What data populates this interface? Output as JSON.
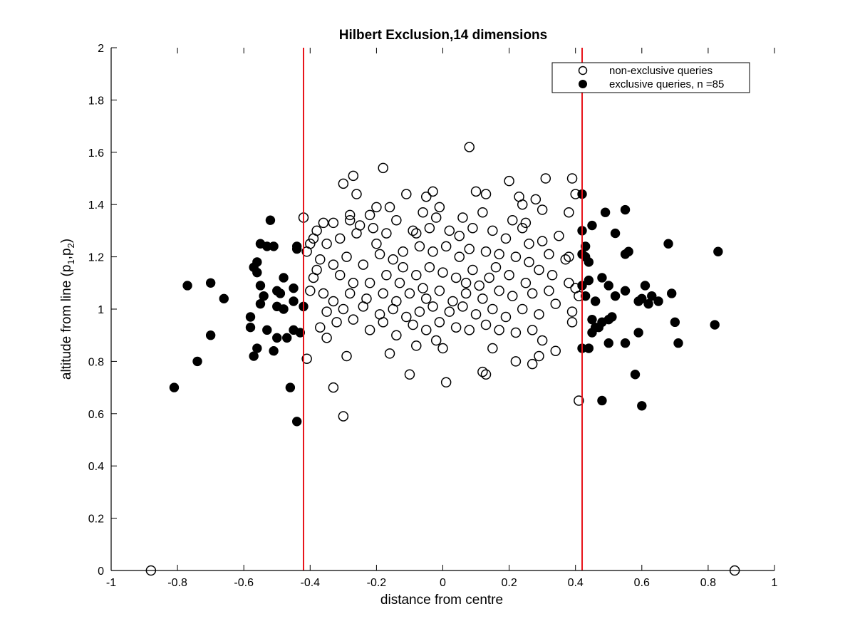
{
  "chart_data": {
    "type": "scatter",
    "title": "Hilbert Exclusion,14 dimensions",
    "xlabel": "distance from centre",
    "ylabel": {
      "base": "altitude from line (p",
      "sub1": "1",
      "sep": ",p",
      "sub2": "2",
      "close": ")"
    },
    "xlim": [
      -1,
      1
    ],
    "ylim": [
      0,
      2
    ],
    "xticks": [
      "-1",
      "-0.8",
      "-0.6",
      "-0.4",
      "-0.2",
      "0",
      "0.2",
      "0.4",
      "0.6",
      "0.8",
      "1"
    ],
    "yticks": [
      "0",
      "0.2",
      "0.4",
      "0.6",
      "0.8",
      "1",
      "1.2",
      "1.4",
      "1.6",
      "1.8",
      "2"
    ],
    "grid": false,
    "legend_position": "top-right",
    "threshold_lines": {
      "x": [
        -0.42,
        0.42
      ],
      "color": "#e8141b"
    },
    "series": [
      {
        "name": "non-exclusive queries",
        "marker": "open-circle",
        "color": "#000000",
        "points": [
          [
            -0.88,
            0.0
          ],
          [
            0.88,
            0.0
          ],
          [
            0.08,
            1.62
          ],
          [
            -0.18,
            1.54
          ],
          [
            -0.27,
            1.51
          ],
          [
            -0.3,
            1.48
          ],
          [
            0.31,
            1.5
          ],
          [
            0.39,
            1.5
          ],
          [
            0.2,
            1.49
          ],
          [
            -0.11,
            1.44
          ],
          [
            0.13,
            1.44
          ],
          [
            0.1,
            1.45
          ],
          [
            -0.03,
            1.45
          ],
          [
            -0.05,
            1.43
          ],
          [
            -0.26,
            1.44
          ],
          [
            0.23,
            1.43
          ],
          [
            0.28,
            1.42
          ],
          [
            0.24,
            1.4
          ],
          [
            -0.16,
            1.39
          ],
          [
            -0.2,
            1.39
          ],
          [
            -0.28,
            1.36
          ],
          [
            0.3,
            1.38
          ],
          [
            0.38,
            1.37
          ],
          [
            -0.01,
            1.39
          ],
          [
            -0.42,
            1.35
          ],
          [
            -0.36,
            1.33
          ],
          [
            -0.33,
            1.33
          ],
          [
            -0.38,
            1.3
          ],
          [
            -0.28,
            1.34
          ],
          [
            -0.14,
            1.34
          ],
          [
            -0.06,
            1.37
          ],
          [
            -0.02,
            1.35
          ],
          [
            0.06,
            1.35
          ],
          [
            0.12,
            1.37
          ],
          [
            0.21,
            1.34
          ],
          [
            0.25,
            1.33
          ],
          [
            -0.39,
            1.27
          ],
          [
            -0.35,
            1.25
          ],
          [
            -0.41,
            1.22
          ],
          [
            -0.31,
            1.27
          ],
          [
            -0.26,
            1.29
          ],
          [
            -0.21,
            1.31
          ],
          [
            -0.17,
            1.29
          ],
          [
            -0.09,
            1.3
          ],
          [
            -0.04,
            1.31
          ],
          [
            0.02,
            1.3
          ],
          [
            0.09,
            1.31
          ],
          [
            0.15,
            1.3
          ],
          [
            0.19,
            1.27
          ],
          [
            0.24,
            1.31
          ],
          [
            0.3,
            1.26
          ],
          [
            0.35,
            1.28
          ],
          [
            -0.37,
            1.19
          ],
          [
            -0.33,
            1.17
          ],
          [
            -0.29,
            1.2
          ],
          [
            -0.24,
            1.17
          ],
          [
            -0.19,
            1.21
          ],
          [
            -0.15,
            1.19
          ],
          [
            -0.12,
            1.22
          ],
          [
            -0.07,
            1.24
          ],
          [
            -0.03,
            1.22
          ],
          [
            0.01,
            1.24
          ],
          [
            0.05,
            1.2
          ],
          [
            0.08,
            1.23
          ],
          [
            0.13,
            1.22
          ],
          [
            0.17,
            1.21
          ],
          [
            0.22,
            1.2
          ],
          [
            0.26,
            1.18
          ],
          [
            0.32,
            1.21
          ],
          [
            0.37,
            1.19
          ],
          [
            -0.38,
            1.15
          ],
          [
            -0.31,
            1.13
          ],
          [
            -0.27,
            1.1
          ],
          [
            -0.22,
            1.1
          ],
          [
            -0.17,
            1.13
          ],
          [
            -0.13,
            1.1
          ],
          [
            -0.08,
            1.13
          ],
          [
            -0.04,
            1.16
          ],
          [
            0.0,
            1.14
          ],
          [
            0.04,
            1.12
          ],
          [
            0.09,
            1.15
          ],
          [
            0.14,
            1.12
          ],
          [
            0.2,
            1.13
          ],
          [
            0.25,
            1.1
          ],
          [
            0.29,
            1.15
          ],
          [
            -0.36,
            1.06
          ],
          [
            -0.33,
            1.03
          ],
          [
            -0.28,
            1.06
          ],
          [
            -0.23,
            1.04
          ],
          [
            -0.18,
            1.06
          ],
          [
            -0.14,
            1.03
          ],
          [
            -0.1,
            1.06
          ],
          [
            -0.05,
            1.04
          ],
          [
            -0.01,
            1.07
          ],
          [
            0.03,
            1.03
          ],
          [
            0.07,
            1.06
          ],
          [
            0.12,
            1.04
          ],
          [
            0.17,
            1.07
          ],
          [
            0.21,
            1.05
          ],
          [
            0.27,
            1.06
          ],
          [
            0.32,
            1.07
          ],
          [
            0.38,
            1.1
          ],
          [
            -0.4,
            1.07
          ],
          [
            -0.35,
            0.99
          ],
          [
            -0.3,
            1.0
          ],
          [
            -0.24,
            1.01
          ],
          [
            -0.19,
            0.98
          ],
          [
            -0.15,
            1.0
          ],
          [
            -0.11,
            0.97
          ],
          [
            -0.07,
            0.99
          ],
          [
            -0.03,
            1.01
          ],
          [
            0.02,
            0.99
          ],
          [
            0.06,
            1.01
          ],
          [
            0.1,
            0.98
          ],
          [
            0.15,
            1.0
          ],
          [
            0.19,
            0.97
          ],
          [
            0.24,
            1.0
          ],
          [
            0.29,
            0.98
          ],
          [
            0.34,
            1.02
          ],
          [
            0.39,
            0.99
          ],
          [
            -0.37,
            0.93
          ],
          [
            -0.32,
            0.95
          ],
          [
            -0.27,
            0.96
          ],
          [
            -0.22,
            0.92
          ],
          [
            -0.18,
            0.95
          ],
          [
            -0.14,
            0.9
          ],
          [
            -0.09,
            0.94
          ],
          [
            -0.05,
            0.92
          ],
          [
            -0.01,
            0.95
          ],
          [
            0.04,
            0.93
          ],
          [
            0.08,
            0.92
          ],
          [
            0.13,
            0.94
          ],
          [
            0.17,
            0.92
          ],
          [
            0.22,
            0.91
          ],
          [
            0.27,
            0.92
          ],
          [
            0.3,
            0.88
          ],
          [
            0.39,
            0.95
          ],
          [
            -0.41,
            0.81
          ],
          [
            -0.35,
            0.89
          ],
          [
            -0.29,
            0.82
          ],
          [
            -0.16,
            0.83
          ],
          [
            -0.08,
            0.86
          ],
          [
            -0.02,
            0.88
          ],
          [
            0.0,
            0.85
          ],
          [
            0.15,
            0.85
          ],
          [
            0.22,
            0.8
          ],
          [
            0.27,
            0.79
          ],
          [
            0.29,
            0.82
          ],
          [
            0.34,
            0.84
          ],
          [
            -0.1,
            0.75
          ],
          [
            0.01,
            0.72
          ],
          [
            0.12,
            0.76
          ],
          [
            0.13,
            0.75
          ],
          [
            -0.33,
            0.7
          ],
          [
            -0.3,
            0.59
          ],
          [
            0.41,
            0.65
          ],
          [
            0.4,
            1.44
          ],
          [
            0.38,
            1.2
          ],
          [
            0.4,
            1.08
          ],
          [
            0.41,
            1.05
          ],
          [
            -0.4,
            1.25
          ],
          [
            -0.39,
            1.12
          ],
          [
            -0.2,
            1.25
          ],
          [
            -0.08,
            1.29
          ],
          [
            0.05,
            1.28
          ],
          [
            0.16,
            1.16
          ],
          [
            -0.25,
            1.32
          ],
          [
            0.11,
            1.09
          ],
          [
            -0.12,
            1.16
          ],
          [
            0.26,
            1.25
          ],
          [
            -0.06,
            1.08
          ],
          [
            0.07,
            1.1
          ],
          [
            0.33,
            1.13
          ],
          [
            -0.22,
            1.36
          ]
        ]
      },
      {
        "name": "exclusive queries, n =85",
        "marker": "filled-circle",
        "color": "#000000",
        "points": [
          [
            -0.81,
            0.7
          ],
          [
            -0.77,
            1.09
          ],
          [
            -0.74,
            0.8
          ],
          [
            -0.7,
            1.1
          ],
          [
            -0.7,
            0.9
          ],
          [
            -0.66,
            1.04
          ],
          [
            -0.58,
            0.97
          ],
          [
            -0.58,
            0.93
          ],
          [
            -0.57,
            0.82
          ],
          [
            -0.56,
            1.18
          ],
          [
            -0.56,
            1.14
          ],
          [
            -0.56,
            0.85
          ],
          [
            -0.55,
            1.25
          ],
          [
            -0.55,
            1.09
          ],
          [
            -0.55,
            1.02
          ],
          [
            -0.54,
            1.05
          ],
          [
            -0.53,
            1.24
          ],
          [
            -0.53,
            0.92
          ],
          [
            -0.52,
            1.34
          ],
          [
            -0.51,
            1.24
          ],
          [
            -0.51,
            0.84
          ],
          [
            -0.5,
            1.07
          ],
          [
            -0.5,
            1.01
          ],
          [
            -0.5,
            0.89
          ],
          [
            -0.49,
            1.06
          ],
          [
            -0.48,
            1.12
          ],
          [
            -0.48,
            1.0
          ],
          [
            -0.47,
            0.89
          ],
          [
            -0.46,
            0.7
          ],
          [
            -0.45,
            1.08
          ],
          [
            -0.45,
            1.03
          ],
          [
            -0.45,
            0.92
          ],
          [
            -0.44,
            1.23
          ],
          [
            -0.44,
            0.57
          ],
          [
            -0.43,
            0.91
          ],
          [
            -0.42,
            1.01
          ],
          [
            0.42,
            1.44
          ],
          [
            0.42,
            1.3
          ],
          [
            0.42,
            1.21
          ],
          [
            0.43,
            1.24
          ],
          [
            0.43,
            1.2
          ],
          [
            0.42,
            1.09
          ],
          [
            0.43,
            1.05
          ],
          [
            0.42,
            0.85
          ],
          [
            0.44,
            0.85
          ],
          [
            0.44,
            1.18
          ],
          [
            0.45,
            1.32
          ],
          [
            0.45,
            0.96
          ],
          [
            0.45,
            0.91
          ],
          [
            0.46,
            1.03
          ],
          [
            0.46,
            0.93
          ],
          [
            0.47,
            0.93
          ],
          [
            0.48,
            1.12
          ],
          [
            0.48,
            0.95
          ],
          [
            0.48,
            0.65
          ],
          [
            0.49,
            1.37
          ],
          [
            0.5,
            0.96
          ],
          [
            0.5,
            0.87
          ],
          [
            0.5,
            1.09
          ],
          [
            0.51,
            0.97
          ],
          [
            0.52,
            1.29
          ],
          [
            0.52,
            1.05
          ],
          [
            0.55,
            1.38
          ],
          [
            0.55,
            1.21
          ],
          [
            0.55,
            1.07
          ],
          [
            0.55,
            0.87
          ],
          [
            0.56,
            1.22
          ],
          [
            0.58,
            0.75
          ],
          [
            0.59,
            1.03
          ],
          [
            0.59,
            0.91
          ],
          [
            0.6,
            1.04
          ],
          [
            0.6,
            0.63
          ],
          [
            0.61,
            1.09
          ],
          [
            0.62,
            1.02
          ],
          [
            0.63,
            1.05
          ],
          [
            0.65,
            1.03
          ],
          [
            0.68,
            1.25
          ],
          [
            0.69,
            1.06
          ],
          [
            0.7,
            0.95
          ],
          [
            0.71,
            0.87
          ],
          [
            0.82,
            0.94
          ],
          [
            0.83,
            1.22
          ],
          [
            -0.44,
            1.24
          ],
          [
            0.44,
            1.11
          ],
          [
            -0.57,
            1.16
          ]
        ]
      }
    ]
  }
}
